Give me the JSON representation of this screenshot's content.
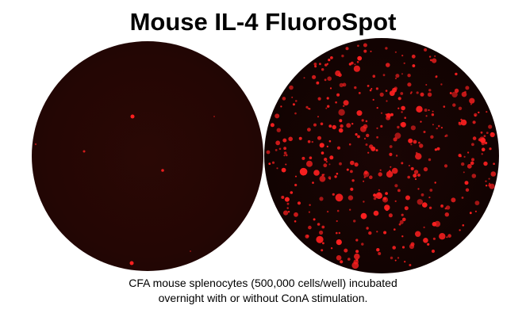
{
  "title": "Mouse IL-4 FluoroSpot",
  "wells": [
    {
      "condition": "without ConA stimulation",
      "spot_density": "sparse"
    },
    {
      "condition": "with ConA stimulation",
      "spot_density": "dense"
    }
  ],
  "caption": {
    "line1": "CFA mouse splenocytes (500,000 cells/well) incubated",
    "line2": "overnight with or without ConA stimulation."
  },
  "colors": {
    "spot": "#ff2020",
    "background": "#1a0403"
  }
}
